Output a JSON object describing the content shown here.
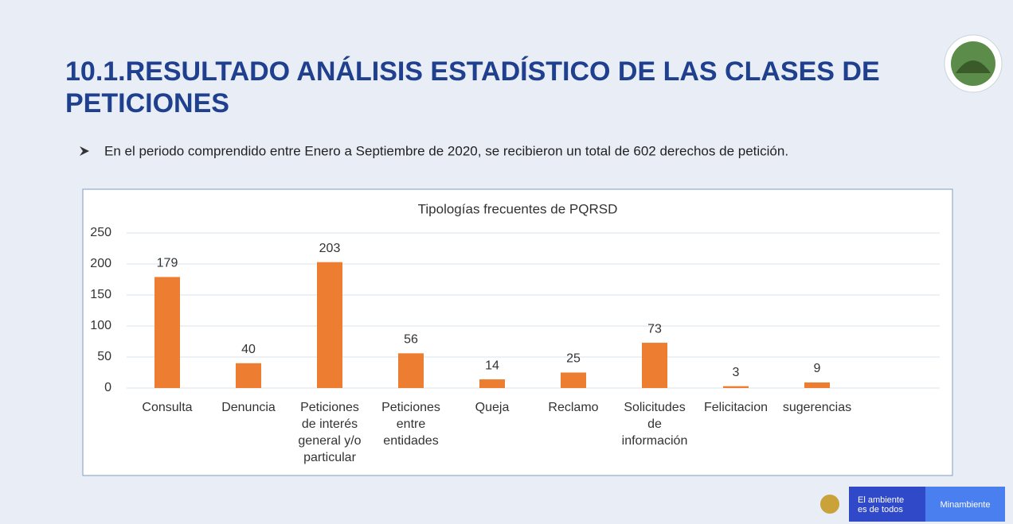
{
  "header": {
    "title_lines": [
      "10.1.RESULTADO ANÁLISIS ESTADÍSTICO DE LAS CLASES DE",
      "PETICIONES"
    ]
  },
  "bullet": "En el periodo comprendido entre Enero a Septiembre de 2020, se recibieron un total de 602 derechos de petición.",
  "footer": {
    "brand_lines": [
      "El ambiente",
      "es de todos"
    ],
    "ministry": "Minambiente"
  },
  "chart_data": {
    "type": "bar",
    "title": "Tipologías frecuentes de PQRSD",
    "categories": [
      "Consulta",
      "Denuncia",
      "Peticiones de interés general y/o particular",
      "Peticiones entre entidades",
      "Queja",
      "Reclamo",
      "Solicitudes de información",
      "Felicitacion",
      "sugerencias"
    ],
    "values": [
      179,
      40,
      203,
      56,
      14,
      25,
      73,
      3,
      9
    ],
    "color": "#ed7d31",
    "ylim": [
      0,
      250
    ],
    "yticks": [
      0,
      50,
      100,
      150,
      200,
      250
    ],
    "grid": true
  }
}
